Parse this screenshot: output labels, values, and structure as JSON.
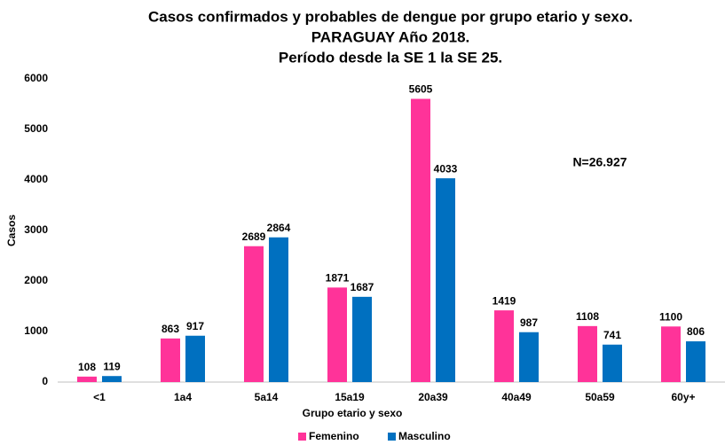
{
  "chart_data": {
    "type": "bar",
    "title": [
      "Casos confirmados y probables de dengue por grupo etario y sexo.",
      "PARAGUAY Año 2018.",
      "Período desde la SE 1 la SE 25."
    ],
    "x_label": "Grupo etario y sexo",
    "y_label": "Casos",
    "annotation": "N=26.927",
    "categories": [
      "<1",
      "1a4",
      "5a14",
      "15a19",
      "20a39",
      "40a49",
      "50a59",
      "60y+"
    ],
    "series": [
      {
        "name": "Femenino",
        "color": "#ff3399",
        "values": [
          108,
          863,
          2689,
          1871,
          5605,
          1419,
          1108,
          1100
        ]
      },
      {
        "name": "Masculino",
        "color": "#0070c0",
        "values": [
          119,
          917,
          2864,
          1687,
          4033,
          987,
          741,
          806
        ]
      }
    ],
    "ylim": [
      0,
      6000
    ],
    "yticks": [
      0,
      1000,
      2000,
      3000,
      4000,
      5000,
      6000
    ],
    "grid": false,
    "legend": "bottom"
  }
}
